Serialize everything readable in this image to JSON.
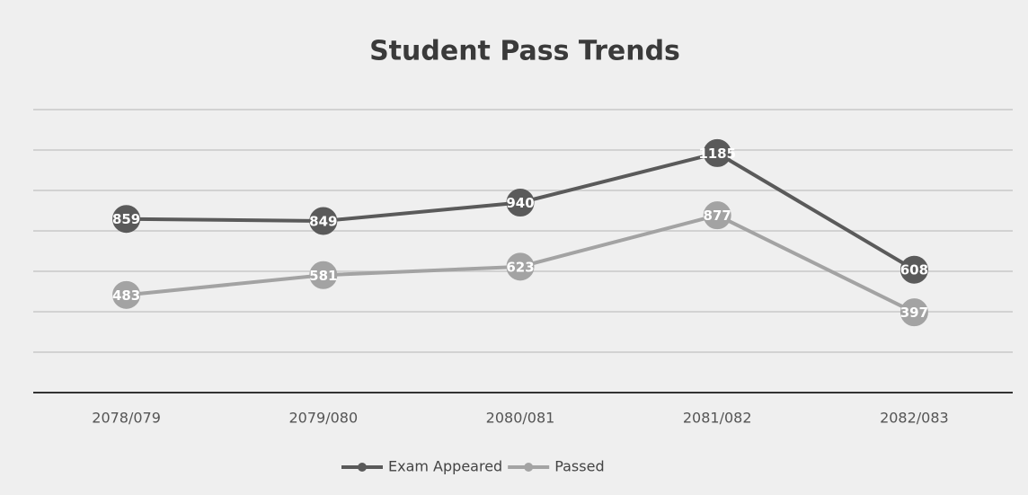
{
  "chart_data": {
    "type": "line",
    "title": "Student Pass Trends",
    "categories": [
      "2078/079",
      "2079/080",
      "2080/081",
      "2081/082",
      "2082/083"
    ],
    "series": [
      {
        "name": "Exam Appeared",
        "color": "#5a5a5a",
        "values": [
          859,
          849,
          940,
          1185,
          608
        ]
      },
      {
        "name": "Passed",
        "color": "#a3a3a3",
        "values": [
          483,
          581,
          623,
          877,
          397
        ]
      }
    ],
    "ylim": [
      0,
      1400
    ],
    "yticks": [
      0,
      200,
      400,
      600,
      800,
      1000,
      1200,
      1400
    ],
    "grid": true,
    "legend": "bottom"
  }
}
